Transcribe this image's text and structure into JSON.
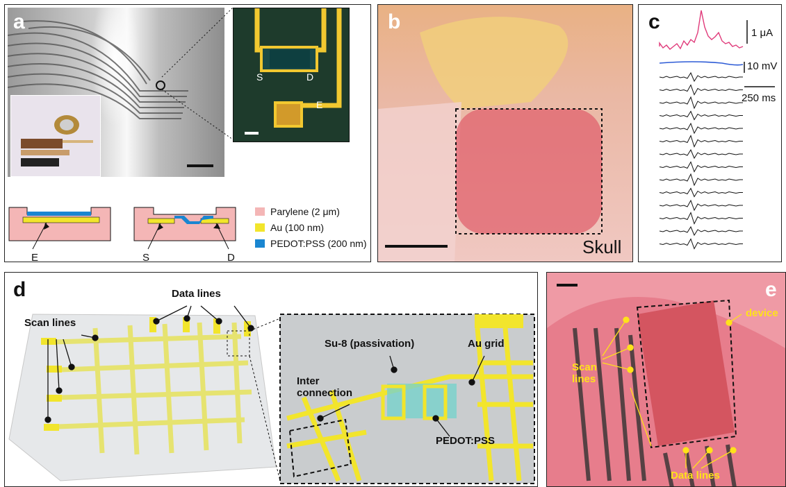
{
  "panel_a": {
    "letter": "a",
    "inset_labels": {
      "source": "S",
      "drain": "D",
      "electrode": "E"
    },
    "cross_section_labels": {
      "electrode": "E",
      "source": "S",
      "drain": "D"
    },
    "legend": [
      {
        "label": "Parylene (2 μm)",
        "color": "#f4b6b6"
      },
      {
        "label": "Au (100 nm)",
        "color": "#f2e52c"
      },
      {
        "label": "PEDOT:PSS (200 nm)",
        "color": "#1a86d1"
      }
    ]
  },
  "panel_b": {
    "letter": "b",
    "label": "Skull"
  },
  "panel_c": {
    "letter": "c",
    "scale_current": "1 μA",
    "scale_voltage": "10 mV",
    "scale_time": "250 ms",
    "colors": {
      "current": "#e03a7a",
      "lfp": "#2d5bd6",
      "trace": "#111111"
    }
  },
  "panel_d": {
    "letter": "d",
    "labels": {
      "data_lines": "Data lines",
      "scan_lines": "Scan lines",
      "passivation": "Su-8 (passivation)",
      "au_grid": "Au grid",
      "interconnection": "Inter\nconnection",
      "pedot": "PEDOT:PSS"
    }
  },
  "panel_e": {
    "letter": "e",
    "labels": {
      "device": "device",
      "scan": "Scan\nlines",
      "data": "Data lines"
    }
  }
}
